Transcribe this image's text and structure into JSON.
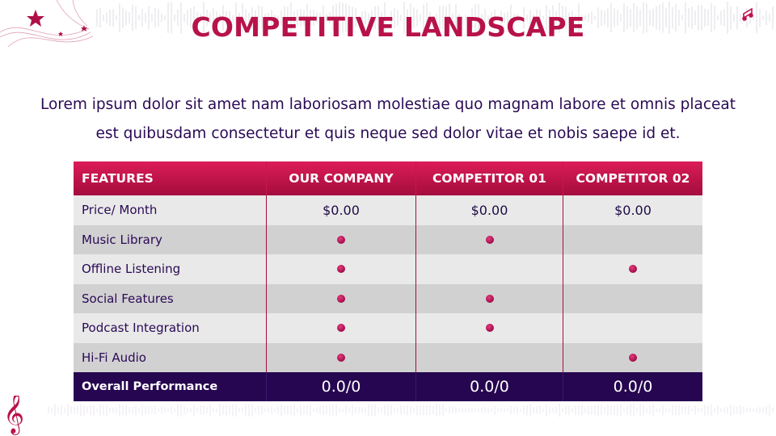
{
  "title": "COMPETITIVE LANDSCAPE",
  "description": "Lorem ipsum dolor sit amet nam laboriosam molestiae quo magnam labore et omnis placeat est quibusdam consectetur et quis neque sed dolor vitae et nobis saepe id et.",
  "colors": {
    "accent": "#b8124a",
    "header_top": "#dc1c58",
    "footer": "#260650",
    "text": "#2a0a55"
  },
  "icons": [
    "star-icon",
    "music-note-icon",
    "treble-clef-icon"
  ],
  "table": {
    "headers": [
      "FEATURES",
      "OUR COMPANY",
      "COMPETITOR 01",
      "COMPETITOR 02"
    ],
    "price_row": {
      "label": "Price/ Month",
      "values": [
        "$0.00",
        "$0.00",
        "$0.00"
      ]
    },
    "feature_rows": [
      {
        "label": "Music Library",
        "marks": [
          true,
          true,
          false
        ]
      },
      {
        "label": "Offline Listening",
        "marks": [
          true,
          false,
          true
        ]
      },
      {
        "label": "Social Features",
        "marks": [
          true,
          true,
          false
        ]
      },
      {
        "label": "Podcast Integration",
        "marks": [
          true,
          true,
          false
        ]
      },
      {
        "label": "Hi-Fi Audio",
        "marks": [
          true,
          false,
          true
        ]
      }
    ],
    "footer": {
      "label": "Overall Performance",
      "values": [
        "0.0/0",
        "0.0/0",
        "0.0/0"
      ]
    }
  }
}
